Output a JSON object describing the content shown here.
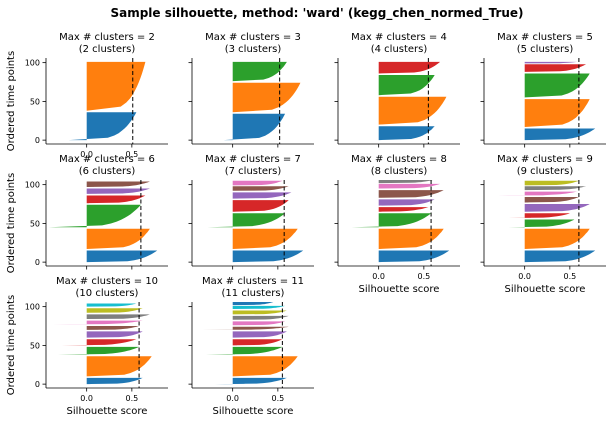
{
  "figure": {
    "title": "Sample silhouette, method: 'ward' (kegg_chen_normed_True)"
  },
  "palette": [
    "#1f77b4",
    "#ff7f0e",
    "#2ca02c",
    "#d62728",
    "#9467bd",
    "#8c564b",
    "#e377c2",
    "#7f7f7f",
    "#bcbd22",
    "#17becf",
    "#1f77b4"
  ],
  "chart_data": [
    {
      "type": "silhouette",
      "title_line1": "Max # clusters = 2",
      "title_line2": "(2 clusters)",
      "ylabel": "Ordered time points",
      "xlabel": "",
      "xlim": [
        -0.45,
        0.9
      ],
      "ylim": [
        -5,
        106
      ],
      "xticks": [
        0.0,
        0.5
      ],
      "xtick_labels": [
        "0.0",
        "0.5"
      ],
      "yticks": [
        0,
        50,
        100
      ],
      "ytick_labels": [
        "0",
        "50",
        "100"
      ],
      "mean_silhouette": 0.51,
      "clusters": [
        {
          "id": 0,
          "start": 0,
          "end": 36,
          "min": -0.2,
          "max": 0.55
        },
        {
          "id": 1,
          "start": 38,
          "end": 101,
          "min": 0.0,
          "max": 0.65
        }
      ]
    },
    {
      "type": "silhouette",
      "title_line1": "Max # clusters = 3",
      "title_line2": "(3 clusters)",
      "ylabel": "",
      "xlabel": "",
      "xlim": [
        -0.45,
        0.9
      ],
      "ylim": [
        -5,
        106
      ],
      "xticks": [
        0.0,
        0.5
      ],
      "xtick_labels": [
        "",
        ""
      ],
      "yticks": [
        0,
        50,
        100
      ],
      "ytick_labels": [
        "",
        "",
        ""
      ],
      "mean_silhouette": 0.52,
      "clusters": [
        {
          "id": 0,
          "start": 0,
          "end": 34,
          "min": -0.1,
          "max": 0.58
        },
        {
          "id": 1,
          "start": 36,
          "end": 74,
          "min": 0.0,
          "max": 0.75
        },
        {
          "id": 2,
          "start": 76,
          "end": 101,
          "min": -0.02,
          "max": 0.6
        }
      ]
    },
    {
      "type": "silhouette",
      "title_line1": "Max # clusters = 4",
      "title_line2": "(4 clusters)",
      "ylabel": "",
      "xlabel": "",
      "xlim": [
        -0.45,
        0.9
      ],
      "ylim": [
        -5,
        106
      ],
      "xticks": [
        0.0,
        0.5
      ],
      "xtick_labels": [
        "",
        ""
      ],
      "yticks": [
        0,
        50,
        100
      ],
      "ytick_labels": [
        "",
        "",
        ""
      ],
      "mean_silhouette": 0.55,
      "clusters": [
        {
          "id": 0,
          "start": 0,
          "end": 18,
          "min": 0.0,
          "max": 0.62
        },
        {
          "id": 1,
          "start": 20,
          "end": 56,
          "min": 0.0,
          "max": 0.75
        },
        {
          "id": 2,
          "start": 58,
          "end": 84,
          "min": -0.01,
          "max": 0.62
        },
        {
          "id": 3,
          "start": 86,
          "end": 101,
          "min": 0.0,
          "max": 0.68
        }
      ]
    },
    {
      "type": "silhouette",
      "title_line1": "Max # clusters = 5",
      "title_line2": "(5 clusters)",
      "ylabel": "",
      "xlabel": "",
      "xlim": [
        -0.45,
        0.9
      ],
      "ylim": [
        -5,
        106
      ],
      "xticks": [
        0.0,
        0.5
      ],
      "xtick_labels": [
        "",
        ""
      ],
      "yticks": [
        0,
        50,
        100
      ],
      "ytick_labels": [
        "",
        "",
        ""
      ],
      "mean_silhouette": 0.6,
      "clusters": [
        {
          "id": 0,
          "start": 0,
          "end": 15,
          "min": 0.0,
          "max": 0.78
        },
        {
          "id": 1,
          "start": 17,
          "end": 53,
          "min": 0.0,
          "max": 0.72
        },
        {
          "id": 2,
          "start": 55,
          "end": 86,
          "min": -0.02,
          "max": 0.72
        },
        {
          "id": 3,
          "start": 88,
          "end": 98,
          "min": 0.0,
          "max": 0.68
        },
        {
          "id": 4,
          "start": 99,
          "end": 101,
          "min": 0.0,
          "max": 0.58
        }
      ]
    },
    {
      "type": "silhouette",
      "title_line1": "Max # clusters = 6",
      "title_line2": "(6 clusters)",
      "ylabel": "Ordered time points",
      "xlabel": "",
      "xlim": [
        -0.45,
        0.9
      ],
      "ylim": [
        -5,
        106
      ],
      "xticks": [
        0.0,
        0.5
      ],
      "xtick_labels": [
        "",
        ""
      ],
      "yticks": [
        0,
        50,
        100
      ],
      "ytick_labels": [
        "0",
        "50",
        "100"
      ],
      "mean_silhouette": 0.6,
      "clusters": [
        {
          "id": 0,
          "start": 0,
          "end": 15,
          "min": 0.0,
          "max": 0.78
        },
        {
          "id": 1,
          "start": 17,
          "end": 43,
          "min": 0.0,
          "max": 0.7
        },
        {
          "id": 2,
          "start": 45,
          "end": 74,
          "min": -0.42,
          "max": 0.6
        },
        {
          "id": 3,
          "start": 76,
          "end": 86,
          "min": -0.05,
          "max": 0.65
        },
        {
          "id": 4,
          "start": 88,
          "end": 95,
          "min": -0.02,
          "max": 0.7
        },
        {
          "id": 5,
          "start": 97,
          "end": 104,
          "min": -0.02,
          "max": 0.7
        }
      ]
    },
    {
      "type": "silhouette",
      "title_line1": "Max # clusters = 7",
      "title_line2": "(7 clusters)",
      "ylabel": "",
      "xlabel": "",
      "xlim": [
        -0.45,
        0.9
      ],
      "ylim": [
        -5,
        106
      ],
      "xticks": [
        0.0,
        0.5
      ],
      "xtick_labels": [
        "",
        ""
      ],
      "yticks": [
        0,
        50,
        100
      ],
      "ytick_labels": [
        "",
        "",
        ""
      ],
      "mean_silhouette": 0.57,
      "clusters": [
        {
          "id": 0,
          "start": 0,
          "end": 15,
          "min": 0.0,
          "max": 0.78
        },
        {
          "id": 1,
          "start": 17,
          "end": 43,
          "min": 0.0,
          "max": 0.72
        },
        {
          "id": 2,
          "start": 45,
          "end": 63,
          "min": -0.28,
          "max": 0.58
        },
        {
          "id": 3,
          "start": 65,
          "end": 80,
          "min": -0.02,
          "max": 0.62
        },
        {
          "id": 4,
          "start": 82,
          "end": 90,
          "min": -0.02,
          "max": 0.65
        },
        {
          "id": 5,
          "start": 92,
          "end": 98,
          "min": 0.0,
          "max": 0.62
        },
        {
          "id": 6,
          "start": 99,
          "end": 105,
          "min": 0.0,
          "max": 0.55
        }
      ]
    },
    {
      "type": "silhouette",
      "title_line1": "Max # clusters = 8",
      "title_line2": "(8 clusters)",
      "ylabel": "",
      "xlabel": "Silhouette score",
      "xlim": [
        -0.45,
        0.9
      ],
      "ylim": [
        -5,
        106
      ],
      "xticks": [
        0.0,
        0.5
      ],
      "xtick_labels": [
        "0.0",
        "0.5"
      ],
      "yticks": [
        0,
        50,
        100
      ],
      "ytick_labels": [
        "",
        "",
        ""
      ],
      "mean_silhouette": 0.58,
      "clusters": [
        {
          "id": 0,
          "start": 0,
          "end": 15,
          "min": 0.0,
          "max": 0.78
        },
        {
          "id": 1,
          "start": 17,
          "end": 43,
          "min": 0.0,
          "max": 0.72
        },
        {
          "id": 2,
          "start": 45,
          "end": 63,
          "min": -0.3,
          "max": 0.58
        },
        {
          "id": 3,
          "start": 65,
          "end": 71,
          "min": -0.18,
          "max": 0.55
        },
        {
          "id": 4,
          "start": 73,
          "end": 81,
          "min": 0.0,
          "max": 0.62
        },
        {
          "id": 5,
          "start": 83,
          "end": 93,
          "min": -0.02,
          "max": 0.72
        },
        {
          "id": 6,
          "start": 95,
          "end": 101,
          "min": 0.0,
          "max": 0.68
        },
        {
          "id": 7,
          "start": 102,
          "end": 106,
          "min": 0.0,
          "max": 0.6
        }
      ]
    },
    {
      "type": "silhouette",
      "title_line1": "Max # clusters = 9",
      "title_line2": "(9 clusters)",
      "ylabel": "",
      "xlabel": "Silhouette score",
      "xlim": [
        -0.45,
        0.9
      ],
      "ylim": [
        -5,
        106
      ],
      "xticks": [
        0.0,
        0.5
      ],
      "xtick_labels": [
        "0.0",
        "0.5"
      ],
      "yticks": [
        0,
        50,
        100
      ],
      "ytick_labels": [
        "",
        "",
        ""
      ],
      "mean_silhouette": 0.6,
      "clusters": [
        {
          "id": 0,
          "start": 0,
          "end": 15,
          "min": 0.0,
          "max": 0.78
        },
        {
          "id": 1,
          "start": 17,
          "end": 43,
          "min": 0.0,
          "max": 0.72
        },
        {
          "id": 2,
          "start": 45,
          "end": 55,
          "min": -0.18,
          "max": 0.55
        },
        {
          "id": 3,
          "start": 57,
          "end": 63,
          "min": -0.2,
          "max": 0.5
        },
        {
          "id": 4,
          "start": 65,
          "end": 75,
          "min": 0.0,
          "max": 0.72
        },
        {
          "id": 5,
          "start": 77,
          "end": 84,
          "min": -0.05,
          "max": 0.6
        },
        {
          "id": 6,
          "start": 86,
          "end": 91,
          "min": -0.3,
          "max": 0.58
        },
        {
          "id": 7,
          "start": 93,
          "end": 98,
          "min": 0.0,
          "max": 0.68
        },
        {
          "id": 8,
          "start": 99,
          "end": 105,
          "min": 0.0,
          "max": 0.6
        }
      ]
    },
    {
      "type": "silhouette",
      "title_line1": "Max # clusters = 10",
      "title_line2": "(10 clusters)",
      "ylabel": "Ordered time points",
      "xlabel": "Silhouette score",
      "xlim": [
        -0.45,
        0.9
      ],
      "ylim": [
        -5,
        106
      ],
      "xticks": [
        0.0,
        0.5
      ],
      "xtick_labels": [
        "0.0",
        "0.5"
      ],
      "yticks": [
        0,
        50,
        100
      ],
      "ytick_labels": [
        "0",
        "50",
        "100"
      ],
      "mean_silhouette": 0.58,
      "clusters": [
        {
          "id": 0,
          "start": 0,
          "end": 8,
          "min": -0.05,
          "max": 0.62
        },
        {
          "id": 1,
          "start": 10,
          "end": 36,
          "min": 0.0,
          "max": 0.72
        },
        {
          "id": 2,
          "start": 38,
          "end": 48,
          "min": -0.32,
          "max": 0.58
        },
        {
          "id": 3,
          "start": 50,
          "end": 58,
          "min": -0.28,
          "max": 0.55
        },
        {
          "id": 4,
          "start": 60,
          "end": 68,
          "min": 0.0,
          "max": 0.62
        },
        {
          "id": 5,
          "start": 70,
          "end": 75,
          "min": -0.05,
          "max": 0.58
        },
        {
          "id": 6,
          "start": 77,
          "end": 82,
          "min": -0.38,
          "max": 0.62
        },
        {
          "id": 7,
          "start": 84,
          "end": 90,
          "min": 0.0,
          "max": 0.7
        },
        {
          "id": 8,
          "start": 92,
          "end": 98,
          "min": 0.0,
          "max": 0.62
        },
        {
          "id": 9,
          "start": 100,
          "end": 104,
          "min": 0.0,
          "max": 0.55
        }
      ]
    },
    {
      "type": "silhouette",
      "title_line1": "Max # clusters = 11",
      "title_line2": "(11 clusters)",
      "ylabel": "",
      "xlabel": "Silhouette score",
      "xlim": [
        -0.45,
        0.9
      ],
      "ylim": [
        -5,
        106
      ],
      "xticks": [
        0.0,
        0.5
      ],
      "xtick_labels": [
        "0.0",
        "0.5"
      ],
      "yticks": [
        0,
        50,
        100
      ],
      "ytick_labels": [
        "",
        "",
        ""
      ],
      "mean_silhouette": 0.55,
      "clusters": [
        {
          "id": 0,
          "start": 0,
          "end": 8,
          "min": -0.2,
          "max": 0.6
        },
        {
          "id": 1,
          "start": 10,
          "end": 36,
          "min": 0.0,
          "max": 0.72
        },
        {
          "id": 2,
          "start": 38,
          "end": 48,
          "min": -0.3,
          "max": 0.55
        },
        {
          "id": 3,
          "start": 50,
          "end": 58,
          "min": -0.05,
          "max": 0.55
        },
        {
          "id": 4,
          "start": 60,
          "end": 68,
          "min": 0.0,
          "max": 0.6
        },
        {
          "id": 5,
          "start": 70,
          "end": 74,
          "min": -0.35,
          "max": 0.62
        },
        {
          "id": 6,
          "start": 76,
          "end": 81,
          "min": 0.0,
          "max": 0.58
        },
        {
          "id": 7,
          "start": 83,
          "end": 88,
          "min": 0.0,
          "max": 0.62
        },
        {
          "id": 8,
          "start": 90,
          "end": 95,
          "min": 0.0,
          "max": 0.6
        },
        {
          "id": 9,
          "start": 97,
          "end": 101,
          "min": 0.0,
          "max": 0.58
        },
        {
          "id": 10,
          "start": 102,
          "end": 106,
          "min": 0.0,
          "max": 0.45
        }
      ]
    }
  ]
}
